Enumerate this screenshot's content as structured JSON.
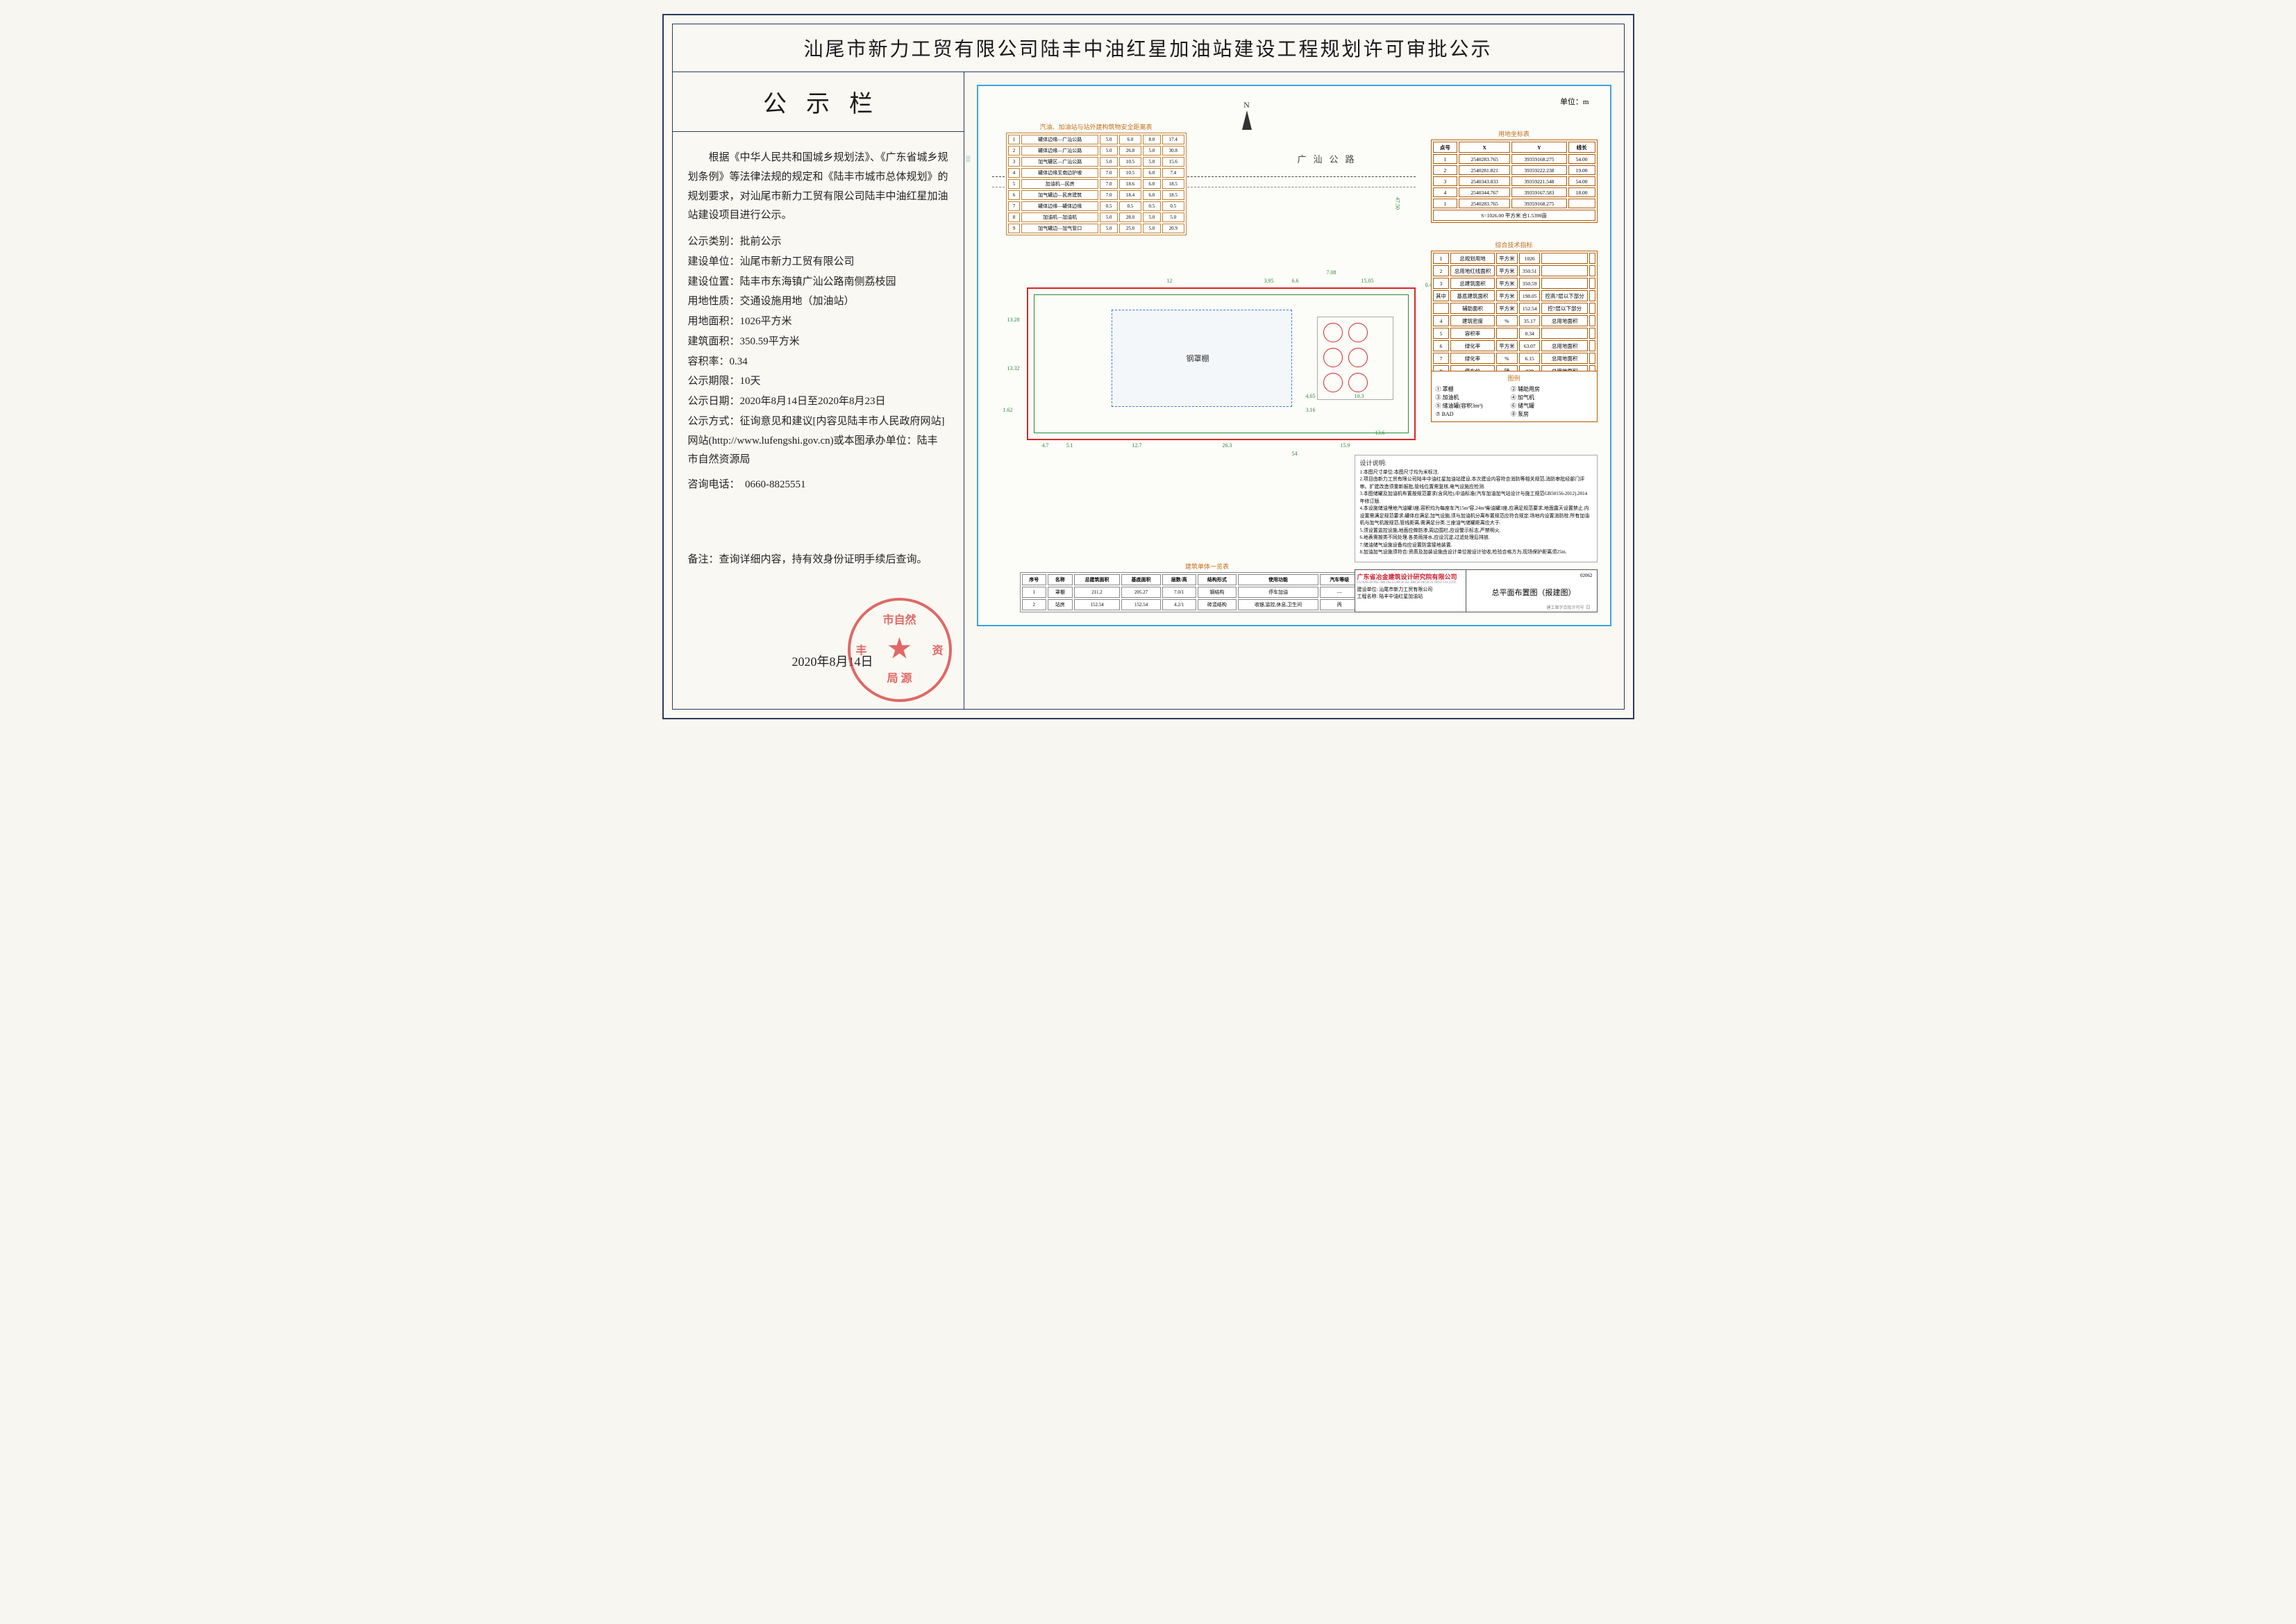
{
  "title": "汕尾市新力工贸有限公司陆丰中油红星加油站建设工程规划许可审批公示",
  "notice_header": "公示栏",
  "intro": "根据《中华人民共和国城乡规划法》、《广东省城乡规划条例》等法律法规的规定和《陆丰市城市总体规划》的规划要求，对汕尾市新力工贸有限公司陆丰中油红星加油站建设项目进行公示。",
  "fields": {
    "type_label": "公示类别：",
    "type_value": "批前公示",
    "unit_label": "建设单位：",
    "unit_value": "汕尾市新力工贸有限公司",
    "loc_label": "建设位置：",
    "loc_value": "陆丰市东海镇广汕公路南侧荔枝园",
    "land_label": "用地性质：",
    "land_value": "交通设施用地（加油站）",
    "area_label": "用地面积：",
    "area_value": "1026平方米",
    "build_label": "建筑面积：",
    "build_value": "350.59平方米",
    "far_label": "容积率：",
    "far_value": "0.34",
    "period_label": "公示期限：",
    "period_value": "10天",
    "date_label": "公示日期：",
    "date_value": "2020年8月14日至2020年8月23日",
    "method_label": "公示方式：",
    "method_value": "征询意见和建议[内容见陆丰市人民政府网站]网站(http://www.lufengshi.gov.cn)或本图承办单位：陆丰市自然资源局",
    "phone_label": "咨询电话：",
    "phone_value": "0660-8825551"
  },
  "note": "备注：查询详细内容，持有效身份证明手续后查询。",
  "stamp_date": "2020年8月14日",
  "stamp_text": "陆丰市自然资源局",
  "plan": {
    "unit_label": "单位：m",
    "north": "N",
    "road_name": "广汕公路",
    "canopy_label": "钢罩棚",
    "mini_table_title": "汽油、加油站与站外建构筑物安全距离表",
    "mini_rows": [
      [
        "1",
        "罐体边缘—广汕公路",
        "5.0",
        "6.0",
        "8.0",
        "17.4"
      ],
      [
        "2",
        "罐体边缘—广汕公路",
        "5.0",
        "26.8",
        "5.0",
        "30.8"
      ],
      [
        "3",
        "加气罐区—广汕公路",
        "5.0",
        "10.5",
        "5.0",
        "15.6"
      ],
      [
        "4",
        "罐体边缘至南边护坡",
        "7.0",
        "10.5",
        "6.0",
        "7.4"
      ],
      [
        "5",
        "加油机—民房",
        "7.0",
        "18.6",
        "6.0",
        "18.5"
      ],
      [
        "6",
        "加气罐边—民房建筑",
        "7.0",
        "18.4",
        "6.0",
        "18.5"
      ],
      [
        "7",
        "罐体边缘—罐体边缘",
        "0.5",
        "0.5",
        "0.5",
        "0.5"
      ],
      [
        "8",
        "加油机—加油机",
        "5.0",
        "28.0",
        "5.0",
        "5.0"
      ],
      [
        "9",
        "加气罐边—加气管口",
        "5.0",
        "25.0",
        "5.0",
        "20.9"
      ]
    ],
    "coord_title": "用地坐标表",
    "coord_headers": [
      "点号",
      "X",
      "Y",
      "线长"
    ],
    "coord_rows": [
      [
        "1",
        "2540283.765",
        "39359168.275",
        "54.00"
      ],
      [
        "2",
        "2540281.821",
        "39359222.238",
        "19.00"
      ],
      [
        "3",
        "2540343.833",
        "39359221.548",
        "54.00"
      ],
      [
        "4",
        "2540344.767",
        "39359167.583",
        "18.00"
      ],
      [
        "1",
        "2540283.765",
        "39359168.275",
        ""
      ]
    ],
    "coord_footer": "S=1026.00 平方米 合1.5390亩",
    "index_title": "综合技术指标",
    "index_rows": [
      [
        "1",
        "总规划用地",
        "平方米",
        "1026",
        "",
        ""
      ],
      [
        "2",
        "总用地红线面积",
        "平方米",
        "350.51",
        "",
        ""
      ],
      [
        "3",
        "总建筑面积",
        "平方米",
        "350.59",
        "",
        ""
      ],
      [
        "其中",
        "基底建筑面积",
        "平方米",
        "198.05",
        "控高7层以下部分",
        ""
      ],
      [
        "",
        "辅助面积",
        "平方米",
        "152.54",
        "控7层以下部分",
        ""
      ],
      [
        "4",
        "建筑密度",
        "%",
        "35.17",
        "总用地面积",
        ""
      ],
      [
        "5",
        "容积率",
        "",
        "0.34",
        "",
        ""
      ],
      [
        "6",
        "绿化率",
        "平方米",
        "63.07",
        "总用地面积",
        ""
      ],
      [
        "7",
        "绿化率",
        "%",
        "6.15",
        "总用地面积",
        ""
      ],
      [
        "8",
        "停车位",
        "辆",
        "030",
        "总用地面积",
        ""
      ],
      [
        "9",
        "停车位率",
        "",
        "67.2",
        "总用地面积",
        ""
      ]
    ],
    "legend_title": "图例",
    "legend_items": [
      "① 罩棚",
      "② 辅助用房",
      "③ 加油机",
      "④ 加气机",
      "⑤ 储油罐(容积3m³)",
      "⑥ 储气罐",
      "⑦ BAD",
      "⑧ 泵房"
    ],
    "notes_title": "设计说明:",
    "notes": [
      "1.本图尺寸单位:本图尺寸均为米标注.",
      "2.项目由新力工贸有限公司陆丰中油红星加油站建设,本次建设内容符合消防等相关规范,消防审批经部门评审。扩建改造须重新报批,管线位置需复核,电气设施应检测.",
      "3.本图储罐及加油机布置按规范要求(含风险),中油标准(汽车加油加气站设计与施工规范GB50156-2012).2014年修订版.",
      "4.本设施储油埋地汽油罐3座,容积均为每座车汽15m³容,24m³柴油罐3座,应满足规范要求,地面露天设置禁止.内设置需满足规范要求.罐体应满足,加气设施,须与加油机分离布置规范应符合规定.场地内设置消防栓.所有加油机与加气机按规范,管线距离,需满足分类.三座油气储罐距离应大于.",
      "5.须设置监控设施,地面应做防渗,周边围栏,应设警示标志,严禁明火.",
      "6.地表需按类不同处理.各类雨排水,应设沉淀,过滤处理后排放.",
      "7.储油储气设施设备均应设置防雷接地装置.",
      "8.加油加气设施须符合:资质及加装设施由设计单位按设计验收,检验合格方为.现场保护距离须25m."
    ],
    "bottom_title": "建筑单体一览表",
    "bottom_headers": [
      "序号",
      "名称",
      "总建筑面积",
      "基底面积",
      "层数/高",
      "结构形式",
      "使用功能",
      "汽车等级",
      "消火栓"
    ],
    "bottom_rows": [
      [
        "1",
        "罩棚",
        "211.2",
        "205.27",
        "7.0/1",
        "钢结构",
        "停车加油",
        "—",
        "二级"
      ],
      [
        "2",
        "站房",
        "152.54",
        "152.54",
        "4.2/1",
        "砖混结构",
        "收银,监控,休息,卫生间",
        "丙",
        "二级"
      ]
    ],
    "title_block": {
      "company": "广东省冶金建筑设计研究院有限公司",
      "company_en": "GUANGDONG METALLURGICAL ARCH DESIGN INST CO.,LTD.",
      "project_owner_label": "建设单位",
      "project_owner": "汕尾市新力工贸有限公司",
      "project_name_label": "工程名称",
      "project_name": "陆丰中油红星加油站",
      "drawing_name": "总平面布置图（报建图）",
      "drawing_no": "02062",
      "footer_note": "建工图字合批许可号【】"
    },
    "dims": {
      "d1": "12.7",
      "d2": "26.3",
      "d3": "54",
      "d4": "15.9",
      "d5": "13.6",
      "d6": "4.7",
      "d7": "5.1",
      "d8": "13.28",
      "d9": "13.32",
      "d10": "1.62",
      "d11": "4.65",
      "d12": "3.16",
      "d13": "10.3",
      "d14": "47.50",
      "d15": "12",
      "d16": "3.95",
      "d17": "6.6",
      "d18": "7.08",
      "d19": "15.05",
      "d20": "0.46"
    }
  },
  "colors": {
    "frame": "#2a3a5a",
    "plan_frame": "#3aa5e0",
    "red": "#d62828",
    "green": "#2a8a3a",
    "orange": "#c07020",
    "stamp": "#d63838",
    "blue": "#3a7ad6"
  }
}
